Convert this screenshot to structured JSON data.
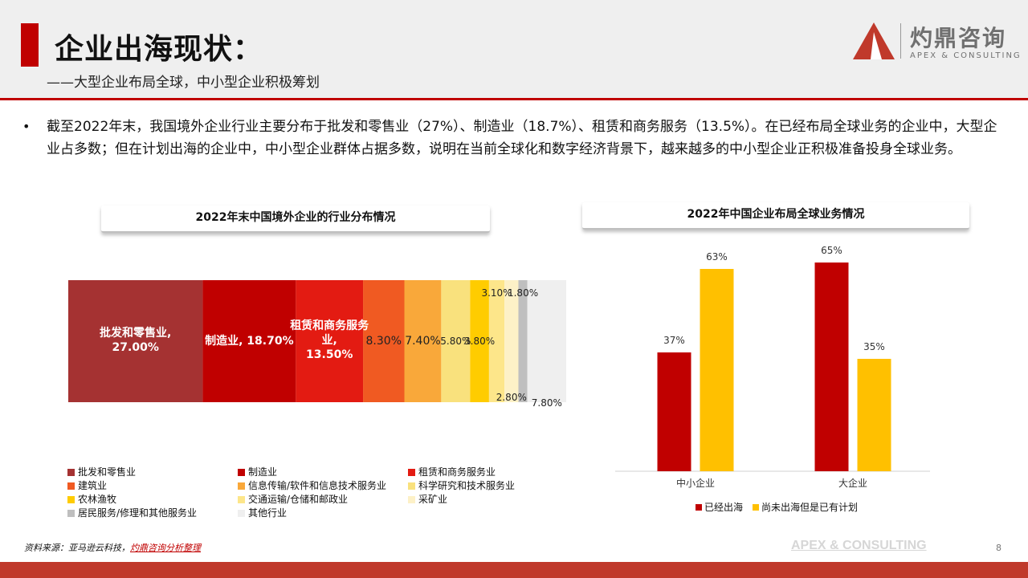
{
  "header": {
    "title": "企业出海现状：",
    "subtitle": "——大型企业布局全球，中小型企业积极筹划",
    "logo_cn": "灼鼎咨询",
    "logo_en": "APEX & CONSULTING"
  },
  "intro": {
    "bullet": "•",
    "text": "截至2022年末，我国境外企业行业主要分布于批发和零售业（27%）、制造业（18.7%）、租赁和商务服务（13.5%）。在已经布局全球业务的企业中，大型企业占多数；但在计划出海的企业中，中小型企业群体占据多数，说明在当前全球化和数字经济背景下，越来越多的中小型企业正积极准备投身全球业务。"
  },
  "chart_titles": {
    "left": "2022年末中国境外企业的行业分布情况",
    "right": "2022年中国企业布局全球业务情况"
  },
  "chart_data": [
    {
      "type": "bar",
      "stacked": "100%-horizontal",
      "title": "2022年末中国境外企业的行业分布情况",
      "series": [
        {
          "name": "批发和零售业",
          "value": 27.0,
          "label": "批发和零售业, 27.00%",
          "color": "#a53232"
        },
        {
          "name": "制造业",
          "value": 18.7,
          "label": "制造业, 18.70%",
          "color": "#c00000"
        },
        {
          "name": "租赁和商务服务业",
          "value": 13.5,
          "label": "租赁和商务服务业, 13.50%",
          "color": "#e31b12"
        },
        {
          "name": "建筑业",
          "value": 8.3,
          "label": "8.30%",
          "color": "#f05a22"
        },
        {
          "name": "信息传输/软件和信息技术服务业",
          "value": 7.4,
          "label": "7.40%",
          "color": "#f9a83a"
        },
        {
          "name": "科学研究和技术服务业",
          "value": 5.8,
          "label": "5.80%",
          "color": "#f9e17d"
        },
        {
          "name": "农林渔牧",
          "value": 3.8,
          "label": "3.80%",
          "color": "#ffcc00"
        },
        {
          "name": "交通运输/仓储和邮政业",
          "value": 3.1,
          "label": "3.10%",
          "color": "#fde68a"
        },
        {
          "name": "采矿业",
          "value": 2.8,
          "label": "2.80%",
          "color": "#fdf1c7"
        },
        {
          "name": "居民服务/修理和其他服务业",
          "value": 1.8,
          "label": "1.80%",
          "color": "#bfbfbf"
        },
        {
          "name": "其他行业",
          "value": 7.8,
          "label": "7.80%",
          "color": "#efefef"
        }
      ]
    },
    {
      "type": "bar",
      "title": "2022年中国企业布局全球业务情况",
      "categories": [
        "中小企业",
        "大企业"
      ],
      "series": [
        {
          "name": "已经出海",
          "values": [
            37,
            65
          ],
          "labels": [
            "37%",
            "65%"
          ],
          "color": "#c00000"
        },
        {
          "name": "尚未出海但是已有计划",
          "values": [
            63,
            35
          ],
          "labels": [
            "63%",
            "35%"
          ],
          "color": "#ffc000"
        }
      ],
      "ylim": [
        0,
        70
      ]
    }
  ],
  "footer": {
    "source_prefix": "资料来源：亚马逊云科技，",
    "source_link": "灼鼎咨询分析整理",
    "brand": "APEX & CONSULTING",
    "page": "8"
  }
}
